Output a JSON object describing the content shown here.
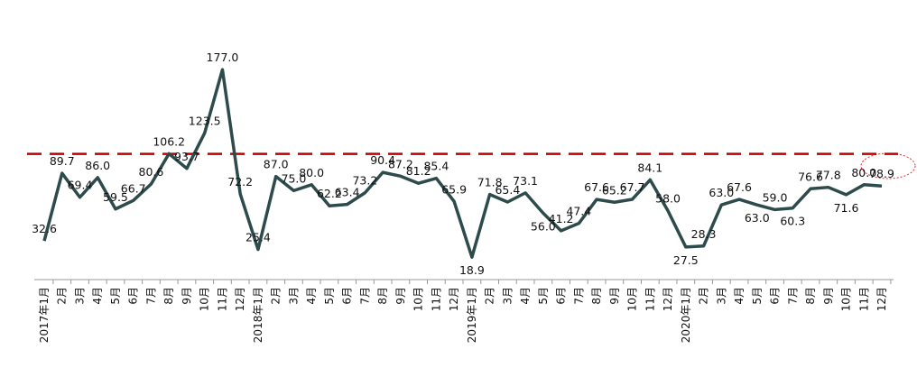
{
  "chart_data": {
    "type": "line",
    "categories": [
      "2017年1月",
      "2月",
      "3月",
      "4月",
      "5月",
      "6月",
      "7月",
      "8月",
      "9月",
      "10月",
      "11月",
      "12月",
      "2018年1月",
      "2月",
      "3月",
      "4月",
      "5月",
      "6月",
      "7月",
      "8月",
      "9月",
      "10月",
      "11月",
      "12月",
      "2019年1月",
      "2月",
      "3月",
      "4月",
      "5月",
      "6月",
      "7月",
      "8月",
      "9月",
      "10月",
      "11月",
      "12月",
      "2020年1月",
      "2月",
      "3月",
      "4月",
      "5月",
      "6月",
      "7月",
      "8月",
      "9月",
      "10月",
      "11月",
      "12月"
    ],
    "series": [
      {
        "color": "#2d4b4b",
        "values": [
          32.6,
          89.7,
          69.4,
          86.0,
          59.5,
          66.7,
          80.6,
          106.2,
          93.7,
          123.5,
          177.0,
          72.2,
          25.4,
          87.0,
          75.0,
          80.0,
          62.2,
          63.4,
          73.2,
          90.4,
          87.2,
          81.2,
          85.4,
          65.9,
          18.9,
          71.8,
          65.4,
          73.1,
          56.0,
          41.2,
          47.4,
          67.6,
          65.2,
          67.7,
          84.1,
          58.0,
          27.5,
          28.3,
          63.0,
          67.6,
          63.0,
          59.0,
          60.3,
          76.6,
          77.8,
          71.6,
          80.0,
          78.9
        ],
        "value_labels": [
          "32.6",
          "89.7",
          "69.4",
          "86.0",
          "59.5",
          "66.7",
          "80.6",
          "106.2",
          "93.7",
          "123.5",
          "177.0",
          "72.2",
          "25.4",
          "87.0",
          "75.0",
          "80.0",
          "62.2",
          "63.4",
          "73.2",
          "90.4",
          "87.2",
          "81.2",
          "85.4",
          "65.9",
          "18.9",
          "71.8",
          "65.4",
          "73.1",
          "56.0",
          "41.2",
          "47.4",
          "67.6",
          "65.2",
          "67.7",
          "84.1",
          "58.0",
          "27.5",
          "28.3",
          "63.0",
          "67.6",
          "63.0",
          "59.0",
          "60.3",
          "76.6",
          "77.8",
          "71.6",
          "80.0",
          "78.9"
        ]
      }
    ],
    "reference_line": {
      "value": 106,
      "color": "#c00000"
    },
    "ylim": [
      0,
      200
    ]
  }
}
